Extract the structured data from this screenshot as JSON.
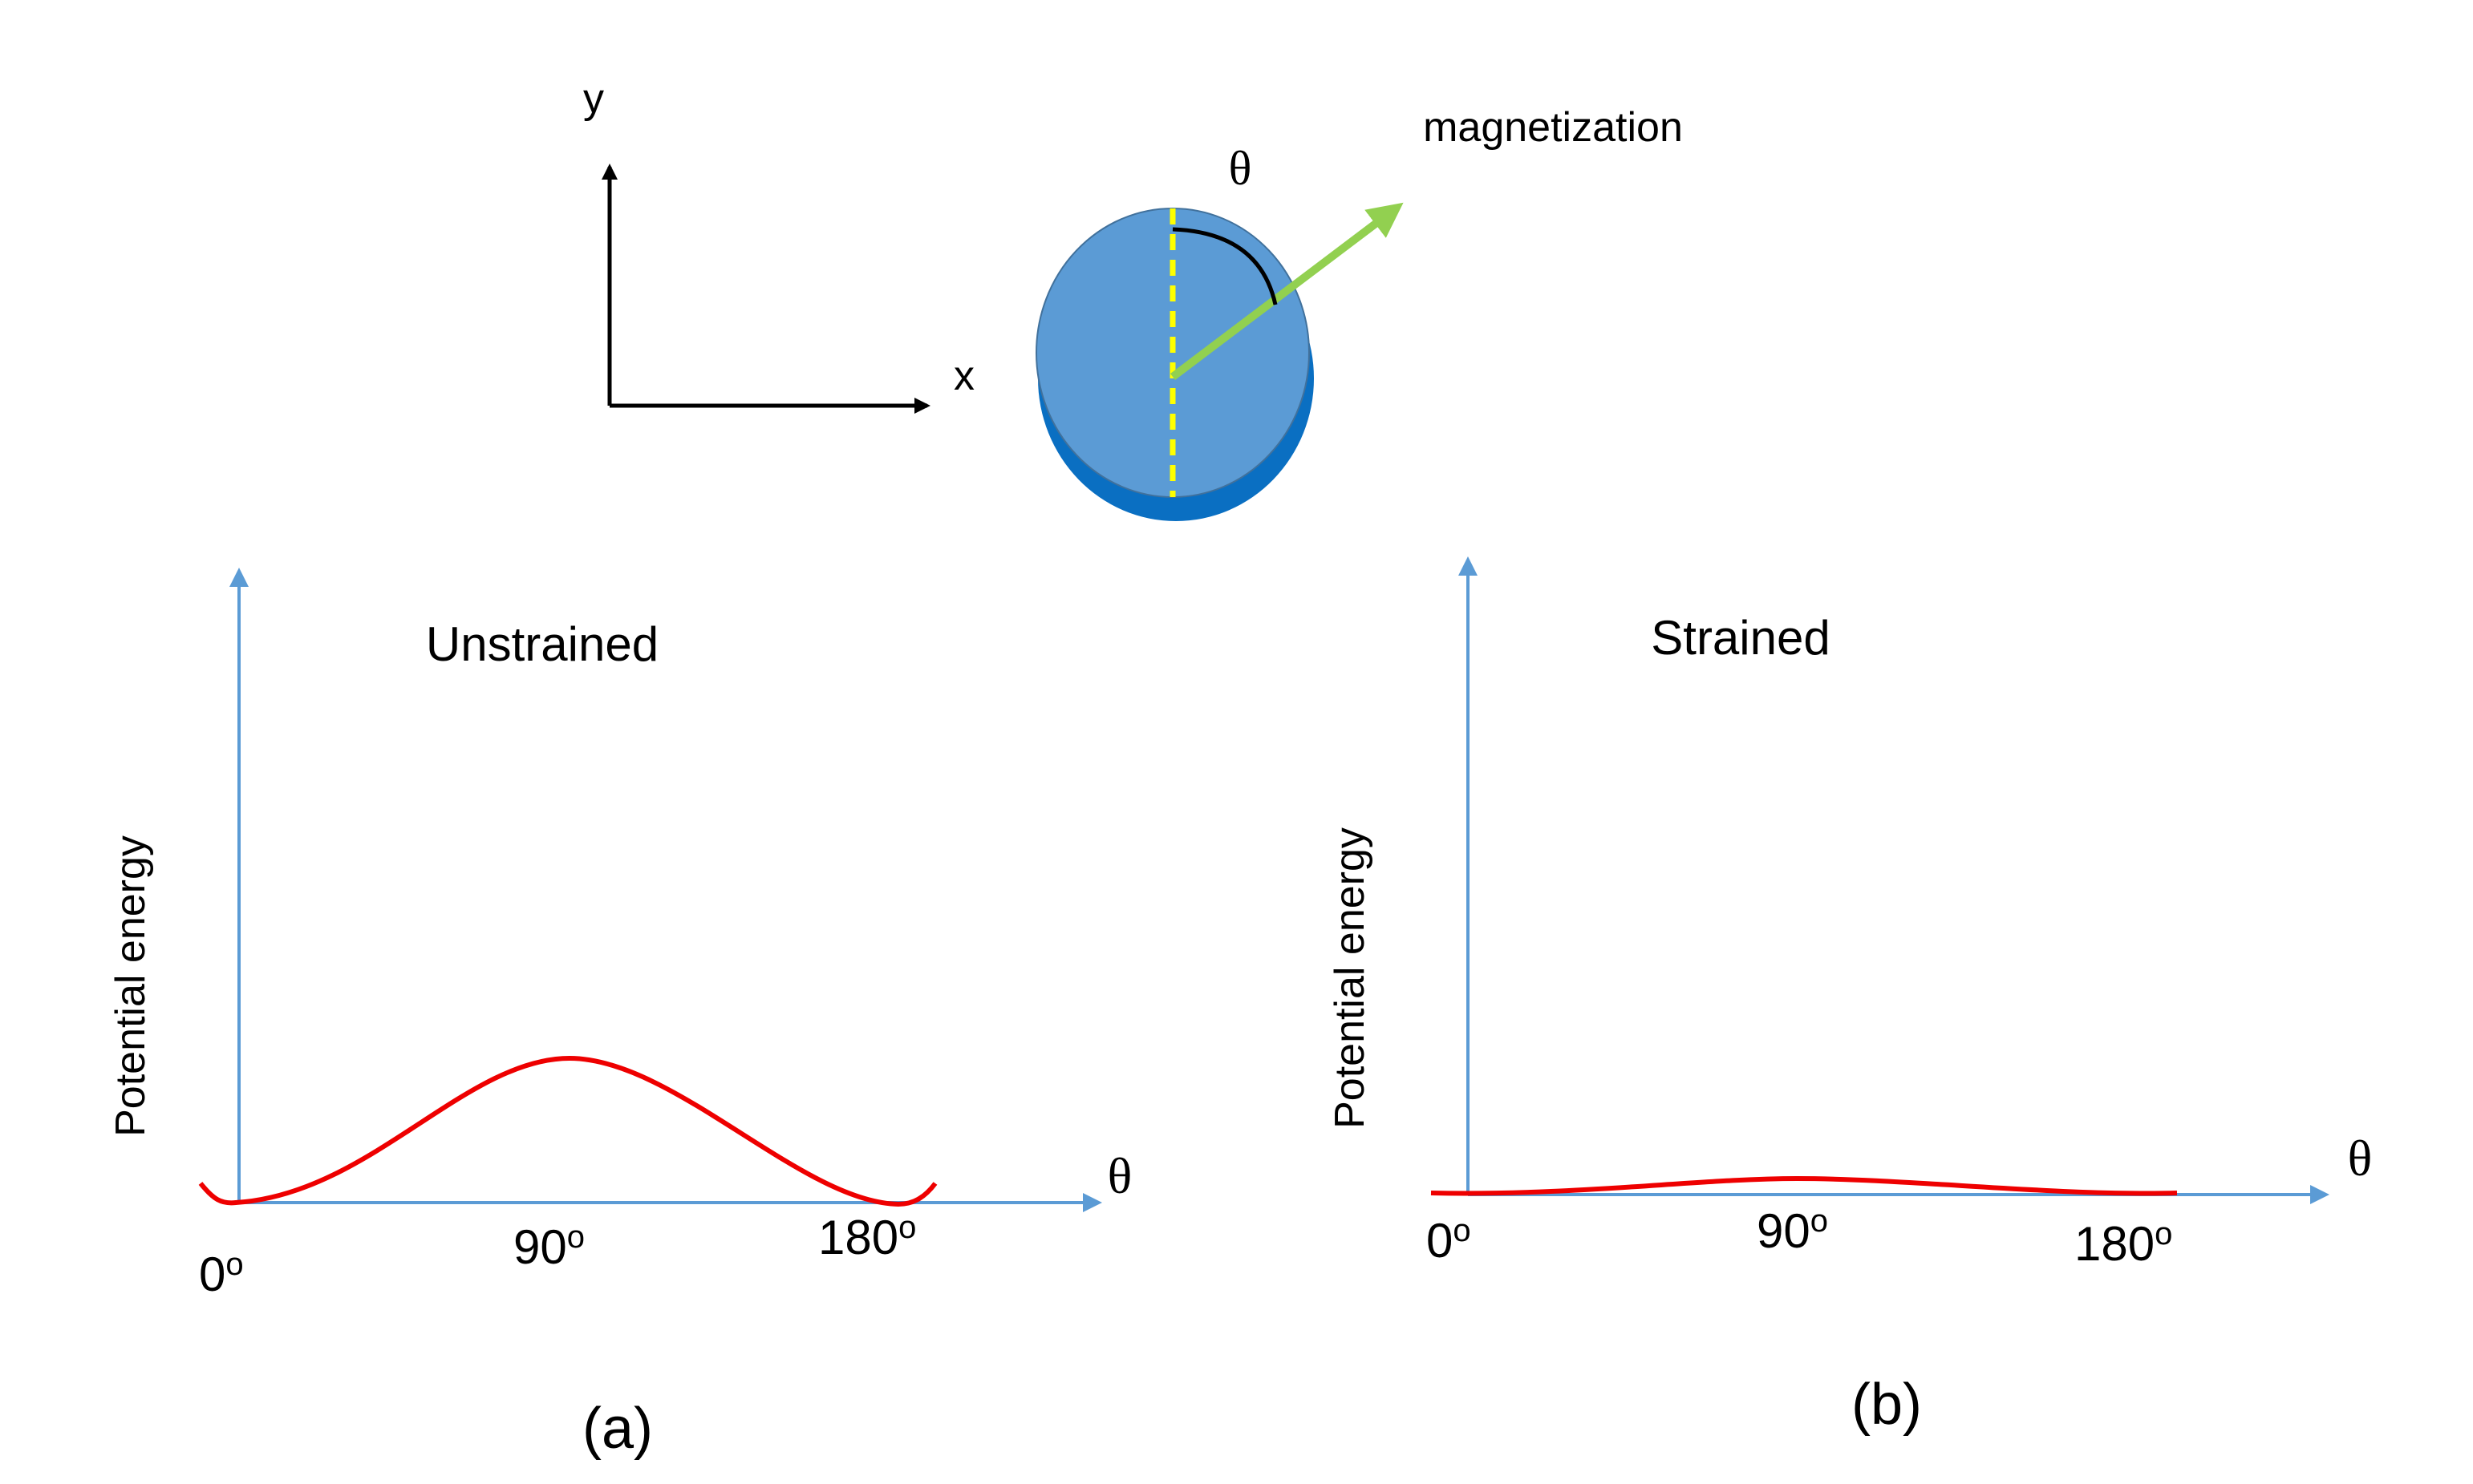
{
  "coordinate_axes": {
    "x": "x",
    "y": "y"
  },
  "disk": {
    "angle_label": "θ",
    "arrow_label": "magnetization"
  },
  "panels": [
    {
      "title": "Unstrained",
      "y_label": "Potential energy",
      "x_label": "θ",
      "ticks": [
        "0",
        "90",
        "180"
      ],
      "degree_mark": "o",
      "caption": "(a)"
    },
    {
      "title": "Strained",
      "y_label": "Potential energy",
      "x_label": "θ",
      "ticks": [
        "0",
        "90",
        "180"
      ],
      "degree_mark": "o",
      "caption": "(b)"
    }
  ]
}
